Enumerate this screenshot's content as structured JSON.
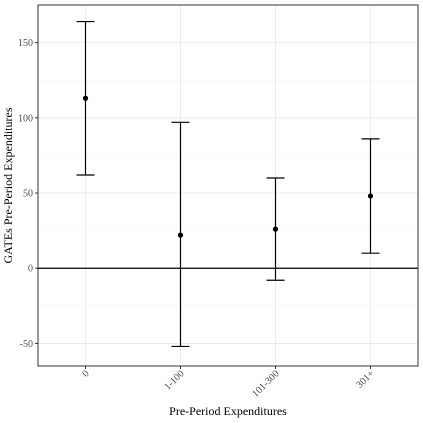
{
  "chart_data": {
    "type": "scatter",
    "title": "",
    "xlabel": "Pre-Period Expenditures",
    "ylabel": "GATEs Pre-Period Expenditures",
    "categories": [
      "0",
      "1-100",
      "101-300",
      "301+"
    ],
    "series": [
      {
        "values": [
          113,
          22,
          26,
          48
        ],
        "lower": [
          62,
          -52,
          -8,
          10
        ],
        "upper": [
          164,
          97,
          60,
          86
        ]
      }
    ],
    "ylim": [
      -65,
      175
    ],
    "yticks": [
      -50,
      0,
      50,
      100,
      150
    ],
    "reference_line_y": 0,
    "grid": true,
    "legend": "none",
    "colors": {
      "point": "#000000",
      "error_bar": "#000000",
      "grid": "#ebebeb",
      "panel_border": "#333333"
    }
  }
}
